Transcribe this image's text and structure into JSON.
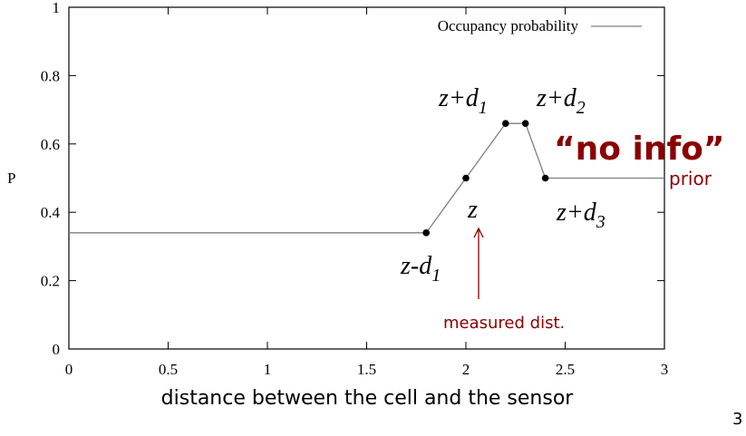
{
  "chart_data": {
    "type": "line",
    "title": "",
    "xlabel": "distance between the cell and the sensor",
    "ylabel": "P",
    "xlim": [
      0,
      3
    ],
    "ylim": [
      0,
      1
    ],
    "x_ticks": [
      "0",
      "0.5",
      "1",
      "1.5",
      "2",
      "2.5",
      "3"
    ],
    "y_ticks": [
      "0",
      "0.2",
      "0.4",
      "0.6",
      "0.8",
      "1"
    ],
    "grid": false,
    "legend_position": "top-right",
    "series": [
      {
        "name": "Occupancy probability",
        "color": "#808080",
        "x": [
          0,
          1.8,
          2.0,
          2.2,
          2.3,
          2.4,
          3.0
        ],
        "y": [
          0.34,
          0.34,
          0.5,
          0.66,
          0.66,
          0.5,
          0.5
        ]
      }
    ],
    "marked_points": [
      {
        "x": 1.8,
        "y": 0.34
      },
      {
        "x": 2.0,
        "y": 0.5
      },
      {
        "x": 2.2,
        "y": 0.66
      },
      {
        "x": 2.3,
        "y": 0.66
      },
      {
        "x": 2.4,
        "y": 0.5
      }
    ],
    "annotations": {
      "z_minus_d1": {
        "main": "z-d",
        "sub": "1"
      },
      "z": "z",
      "z_plus_d1": {
        "main": "z+d",
        "sub": "1"
      },
      "z_plus_d2": {
        "main": "z+d",
        "sub": "2"
      },
      "z_plus_d3": {
        "main": "z+d",
        "sub": "3"
      },
      "no_info": "“no info”",
      "prior": "prior",
      "measured": "measured dist."
    },
    "annotation_color": "#8b0000"
  },
  "slide_number": "3"
}
